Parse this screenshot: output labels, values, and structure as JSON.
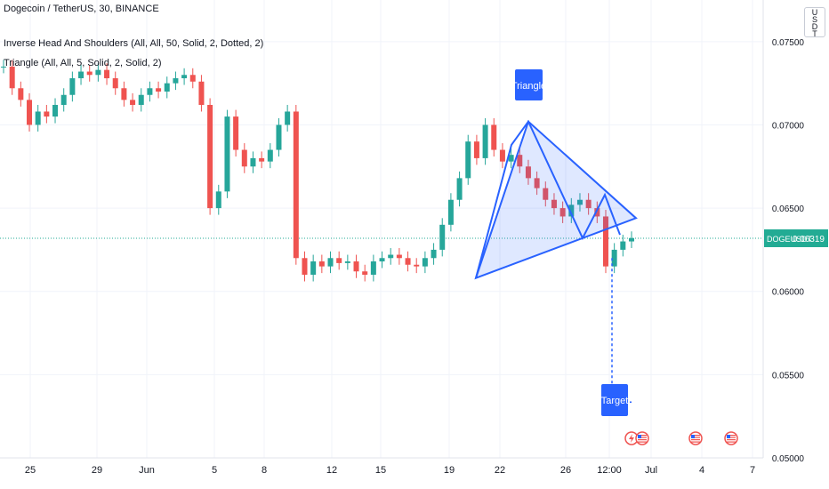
{
  "header": {
    "title": "Dogecoin / TetherUS, 30, BINANCE",
    "indicator_1": "Inverse Head And Shoulders (All, All, 50, Solid, 2, Dotted, 2)",
    "indicator_2": "Triangle (All, All, 5, Solid, 2, Solid, 2)"
  },
  "unit_label": "USDT",
  "price_tag": {
    "symbol": "DOGEUSDT",
    "value": "0.06319"
  },
  "annotations": {
    "triangle": "Triangle",
    "target": "Target"
  },
  "colors": {
    "up": "#26a69a",
    "down": "#ef5350",
    "pattern": "#2962ff",
    "price_line": "#22ab94",
    "grid": "#f0f3fa",
    "text": "#131722"
  },
  "icons": [
    "lightning-event-icon",
    "us-flag-event-icon",
    "us-flag-event-icon",
    "us-flag-event-icon"
  ],
  "chart_data": {
    "type": "line",
    "title": "Dogecoin / TetherUS, 30, BINANCE",
    "y_ticks": [
      "0.07500",
      "0.07000",
      "0.06500",
      "0.06000",
      "0.05500",
      "0.05000"
    ],
    "x_ticks": [
      "25",
      "29",
      "Jun",
      "5",
      "8",
      "12",
      "15",
      "19",
      "22",
      "26",
      "12:00",
      "Jul",
      "4",
      "7"
    ],
    "ylim": [
      0.05,
      0.0775
    ],
    "last_price": 0.06319,
    "series": [
      {
        "values": [
          0.0735,
          0.0722,
          0.0715,
          0.07,
          0.0708,
          0.0705,
          0.0712,
          0.0718,
          0.0728,
          0.0732,
          0.073,
          0.0733,
          0.0728,
          0.0722,
          0.0715,
          0.0712,
          0.0718,
          0.0722,
          0.072,
          0.0725,
          0.0728,
          0.073,
          0.0726,
          0.0712,
          0.065,
          0.066,
          0.0705,
          0.0685,
          0.0675,
          0.068,
          0.0678,
          0.0685,
          0.07,
          0.0708,
          0.062,
          0.061,
          0.0618,
          0.0615,
          0.062,
          0.0617,
          0.0618,
          0.0612,
          0.061,
          0.0618,
          0.062,
          0.0622,
          0.062,
          0.0616,
          0.0615,
          0.062,
          0.0625,
          0.064,
          0.0655,
          0.0668,
          0.069,
          0.068,
          0.07,
          0.0685,
          0.0678,
          0.0682,
          0.0675,
          0.0668,
          0.0662,
          0.0655,
          0.065,
          0.0645,
          0.0652,
          0.0655,
          0.065,
          0.0645,
          0.0615,
          0.0625,
          0.063,
          0.0632
        ]
      }
    ],
    "triangle": {
      "points": [
        [
          "Jun 20",
          0.0608
        ],
        [
          "Jun 23",
          0.0702
        ],
        [
          "Jun 28",
          0.0644
        ]
      ]
    },
    "target": 0.05335
  }
}
